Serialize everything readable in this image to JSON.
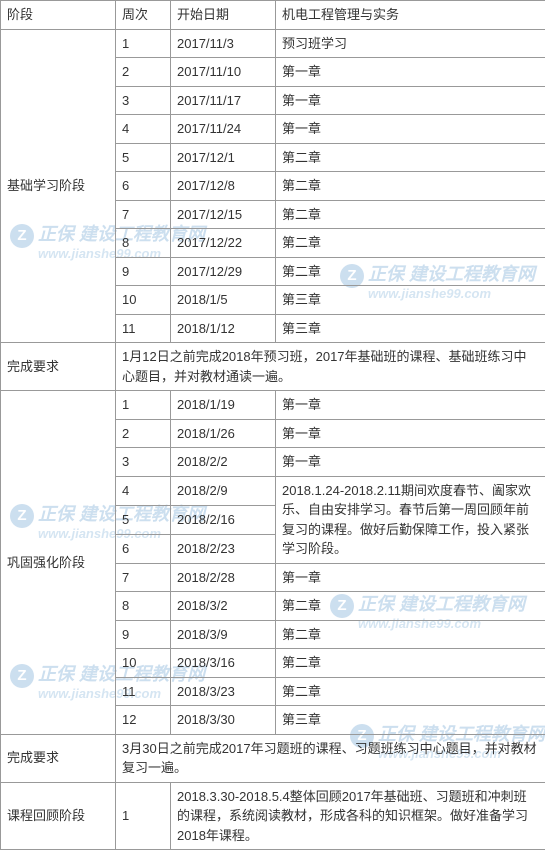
{
  "watermark": {
    "badge": "Z",
    "brand": "正保 建设工程教育网",
    "url": "www.jianshe99.com"
  },
  "table": {
    "headers": {
      "phase": "阶段",
      "week": "周次",
      "date": "开始日期",
      "subject": "机电工程管理与实务"
    },
    "section1": {
      "phase": "基础学习阶段",
      "rows": [
        {
          "week": "1",
          "date": "2017/11/3",
          "content": "预习班学习"
        },
        {
          "week": "2",
          "date": "2017/11/10",
          "content": "第一章"
        },
        {
          "week": "3",
          "date": "2017/11/17",
          "content": "第一章"
        },
        {
          "week": "4",
          "date": "2017/11/24",
          "content": "第一章"
        },
        {
          "week": "5",
          "date": "2017/12/1",
          "content": "第二章"
        },
        {
          "week": "6",
          "date": "2017/12/8",
          "content": "第二章"
        },
        {
          "week": "7",
          "date": "2017/12/15",
          "content": "第二章"
        },
        {
          "week": "8",
          "date": "2017/12/22",
          "content": "第二章"
        },
        {
          "week": "9",
          "date": "2017/12/29",
          "content": "第二章"
        },
        {
          "week": "10",
          "date": "2018/1/5",
          "content": "第三章"
        },
        {
          "week": "11",
          "date": "2018/1/12",
          "content": "第三章"
        }
      ]
    },
    "req1": {
      "label": "完成要求",
      "content": "1月12日之前完成2018年预习班，2017年基础班的课程、基础班练习中心题目，并对教材通读一遍。"
    },
    "section2": {
      "phase": "巩固强化阶段",
      "rows": [
        {
          "week": "1",
          "date": "2018/1/19",
          "content": "第一章"
        },
        {
          "week": "2",
          "date": "2018/1/26",
          "content": "第一章"
        },
        {
          "week": "3",
          "date": "2018/2/2",
          "content": "第一章"
        },
        {
          "week": "4",
          "date": "2018/2/9",
          "content": ""
        },
        {
          "week": "5",
          "date": "2018/2/16",
          "content": ""
        },
        {
          "week": "6",
          "date": "2018/2/23",
          "content": ""
        },
        {
          "week": "7",
          "date": "2018/2/28",
          "content": "第一章"
        },
        {
          "week": "8",
          "date": "2018/3/2",
          "content": "第二章"
        },
        {
          "week": "9",
          "date": "2018/3/9",
          "content": "第二章"
        },
        {
          "week": "10",
          "date": "2018/3/16",
          "content": "第二章"
        },
        {
          "week": "11",
          "date": "2018/3/23",
          "content": "第二章"
        },
        {
          "week": "12",
          "date": "2018/3/30",
          "content": "第三章"
        }
      ],
      "merged_content": "2018.1.24-2018.2.11期间欢度春节、阖家欢乐、自由安排学习。春节后第一周回顾年前复习的课程。做好后勤保障工作，投入紧张学习阶段。"
    },
    "req2": {
      "label": "完成要求",
      "content": "3月30日之前完成2017年习题班的课程、习题班练习中心题目，并对教材复习一遍。"
    },
    "section3": {
      "phase": "课程回顾阶段",
      "week": "1",
      "content": "2018.3.30-2018.5.4整体回顾2017年基础班、习题班和冲刺班的课程，系统阅读教材，形成各科的知识框架。做好准备学习2018年课程。"
    }
  }
}
